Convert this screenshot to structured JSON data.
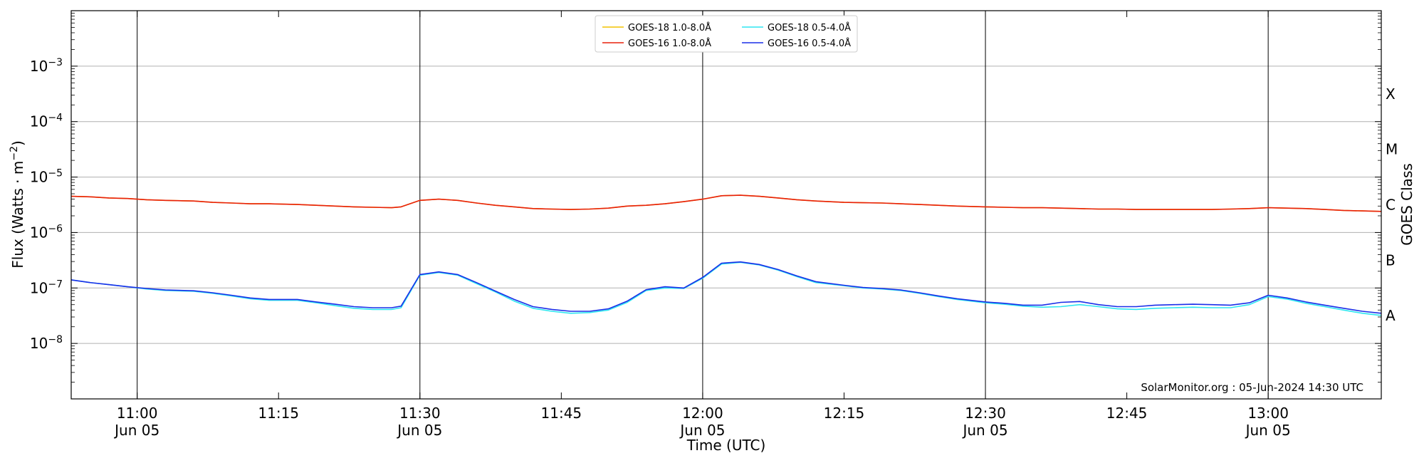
{
  "chart_data": {
    "type": "line",
    "xlabel": "Time (UTC)",
    "ylabel": "Flux (Watts · m",
    "ylabel_sup": "−2",
    "ylabel_close": ")",
    "y2label": "GOES Class",
    "yscale": "log",
    "xlim": [
      "10:53",
      "13:12"
    ],
    "ylim": [
      1e-09,
      0.01
    ],
    "grid": "horizontal",
    "legend_position": "top-center",
    "credit": "SolarMonitor.org : 05-Jun-2024 14:30 UTC",
    "x_ticks": [
      {
        "label": "11:00",
        "sublabel": "Jun 05",
        "value": "11:00",
        "major": true
      },
      {
        "label": "11:15",
        "sublabel": "",
        "value": "11:15",
        "major": false
      },
      {
        "label": "11:30",
        "sublabel": "Jun 05",
        "value": "11:30",
        "major": true
      },
      {
        "label": "11:45",
        "sublabel": "",
        "value": "11:45",
        "major": false
      },
      {
        "label": "12:00",
        "sublabel": "Jun 05",
        "value": "12:00",
        "major": true
      },
      {
        "label": "12:15",
        "sublabel": "",
        "value": "12:15",
        "major": false
      },
      {
        "label": "12:30",
        "sublabel": "Jun 05",
        "value": "12:30",
        "major": true
      },
      {
        "label": "12:45",
        "sublabel": "",
        "value": "12:45",
        "major": false
      },
      {
        "label": "13:00",
        "sublabel": "Jun 05",
        "value": "13:00",
        "major": true
      }
    ],
    "y_ticks": [
      {
        "exp": -8,
        "label": "10",
        "sup": "−8"
      },
      {
        "exp": -7,
        "label": "10",
        "sup": "−7"
      },
      {
        "exp": -6,
        "label": "10",
        "sup": "−6"
      },
      {
        "exp": -5,
        "label": "10",
        "sup": "−5"
      },
      {
        "exp": -4,
        "label": "10",
        "sup": "−4"
      },
      {
        "exp": -3,
        "label": "10",
        "sup": "−3"
      }
    ],
    "goes_classes": [
      {
        "label": "A",
        "exp": -7.5
      },
      {
        "label": "B",
        "exp": -6.5
      },
      {
        "label": "C",
        "exp": -5.5
      },
      {
        "label": "M",
        "exp": -4.5
      },
      {
        "label": "X",
        "exp": -3.5
      }
    ],
    "x": [
      "10:53",
      "10:55",
      "10:57",
      "10:59",
      "11:01",
      "11:03",
      "11:06",
      "11:08",
      "11:10",
      "11:12",
      "11:14",
      "11:17",
      "11:19",
      "11:21",
      "11:23",
      "11:25",
      "11:27",
      "11:28",
      "11:30",
      "11:32",
      "11:34",
      "11:36",
      "11:38",
      "11:40",
      "11:42",
      "11:44",
      "11:46",
      "11:48",
      "11:50",
      "11:52",
      "11:54",
      "11:56",
      "11:58",
      "12:00",
      "12:02",
      "12:04",
      "12:06",
      "12:08",
      "12:10",
      "12:12",
      "12:15",
      "12:17",
      "12:19",
      "12:21",
      "12:23",
      "12:25",
      "12:27",
      "12:30",
      "12:32",
      "12:34",
      "12:36",
      "12:38",
      "12:40",
      "12:42",
      "12:44",
      "12:46",
      "12:48",
      "12:50",
      "12:52",
      "12:54",
      "12:56",
      "12:58",
      "13:00",
      "13:02",
      "13:04",
      "13:06",
      "13:08",
      "13:10",
      "13:12"
    ],
    "series": [
      {
        "name": "GOES-18 1.0-8.0Å",
        "color": "#f2c200",
        "values": [
          4.5e-06,
          4.4e-06,
          4.2e-06,
          4.1e-06,
          3.9e-06,
          3.8e-06,
          3.7e-06,
          3.5e-06,
          3.4e-06,
          3.3e-06,
          3.3e-06,
          3.2e-06,
          3.1e-06,
          3e-06,
          2.9e-06,
          2.85e-06,
          2.8e-06,
          2.9e-06,
          3.8e-06,
          4e-06,
          3.8e-06,
          3.4e-06,
          3.1e-06,
          2.9e-06,
          2.7e-06,
          2.65e-06,
          2.6e-06,
          2.65e-06,
          2.75e-06,
          3e-06,
          3.1e-06,
          3.3e-06,
          3.6e-06,
          4e-06,
          4.6e-06,
          4.7e-06,
          4.5e-06,
          4.2e-06,
          3.9e-06,
          3.7e-06,
          3.5e-06,
          3.45e-06,
          3.4e-06,
          3.3e-06,
          3.2e-06,
          3.1e-06,
          3e-06,
          2.9e-06,
          2.85e-06,
          2.8e-06,
          2.8e-06,
          2.75e-06,
          2.7e-06,
          2.65e-06,
          2.65e-06,
          2.6e-06,
          2.6e-06,
          2.6e-06,
          2.6e-06,
          2.6e-06,
          2.65e-06,
          2.7e-06,
          2.8e-06,
          2.75e-06,
          2.7e-06,
          2.6e-06,
          2.5e-06,
          2.45e-06,
          2.4e-06
        ]
      },
      {
        "name": "GOES-16 1.0-8.0Å",
        "color": "#e8200c",
        "values": [
          4.5e-06,
          4.4e-06,
          4.2e-06,
          4.1e-06,
          3.9e-06,
          3.8e-06,
          3.7e-06,
          3.5e-06,
          3.4e-06,
          3.3e-06,
          3.3e-06,
          3.2e-06,
          3.1e-06,
          3e-06,
          2.9e-06,
          2.85e-06,
          2.8e-06,
          2.9e-06,
          3.8e-06,
          4e-06,
          3.8e-06,
          3.4e-06,
          3.1e-06,
          2.9e-06,
          2.7e-06,
          2.65e-06,
          2.6e-06,
          2.65e-06,
          2.75e-06,
          3e-06,
          3.1e-06,
          3.3e-06,
          3.6e-06,
          4e-06,
          4.6e-06,
          4.7e-06,
          4.5e-06,
          4.2e-06,
          3.9e-06,
          3.7e-06,
          3.5e-06,
          3.45e-06,
          3.4e-06,
          3.3e-06,
          3.2e-06,
          3.1e-06,
          3e-06,
          2.9e-06,
          2.85e-06,
          2.8e-06,
          2.8e-06,
          2.75e-06,
          2.7e-06,
          2.65e-06,
          2.65e-06,
          2.6e-06,
          2.6e-06,
          2.6e-06,
          2.6e-06,
          2.6e-06,
          2.65e-06,
          2.7e-06,
          2.8e-06,
          2.75e-06,
          2.7e-06,
          2.6e-06,
          2.5e-06,
          2.45e-06,
          2.4e-06
        ]
      },
      {
        "name": "GOES-18 0.5-4.0Å",
        "color": "#2ee6f0",
        "values": [
          1.4e-07,
          1.25e-07,
          1.15e-07,
          1.05e-07,
          9.6e-08,
          9e-08,
          8.7e-08,
          8e-08,
          7.2e-08,
          6.4e-08,
          6e-08,
          6e-08,
          5.4e-08,
          4.8e-08,
          4.3e-08,
          4.1e-08,
          4.1e-08,
          4.4e-08,
          1.7e-07,
          1.9e-07,
          1.7e-07,
          1.2e-07,
          8.5e-08,
          5.8e-08,
          4.3e-08,
          3.8e-08,
          3.5e-08,
          3.6e-08,
          4e-08,
          5.5e-08,
          9e-08,
          1e-07,
          9.8e-08,
          1.5e-07,
          2.7e-07,
          2.9e-07,
          2.6e-07,
          2.1e-07,
          1.6e-07,
          1.25e-07,
          1.1e-07,
          1e-07,
          9.6e-08,
          9e-08,
          8e-08,
          7e-08,
          6.2e-08,
          5.4e-08,
          5.1e-08,
          4.7e-08,
          4.5e-08,
          4.6e-08,
          5e-08,
          4.6e-08,
          4.2e-08,
          4.1e-08,
          4.3e-08,
          4.4e-08,
          4.5e-08,
          4.4e-08,
          4.4e-08,
          5e-08,
          7e-08,
          6.3e-08,
          5.3e-08,
          4.6e-08,
          4e-08,
          3.5e-08,
          3.2e-08
        ]
      },
      {
        "name": "GOES-16 0.5-4.0Å",
        "color": "#1a2ee8",
        "values": [
          1.4e-07,
          1.25e-07,
          1.15e-07,
          1.05e-07,
          9.8e-08,
          9.2e-08,
          8.9e-08,
          8.2e-08,
          7.4e-08,
          6.6e-08,
          6.2e-08,
          6.2e-08,
          5.6e-08,
          5.1e-08,
          4.6e-08,
          4.4e-08,
          4.4e-08,
          4.7e-08,
          1.75e-07,
          1.95e-07,
          1.75e-07,
          1.25e-07,
          8.8e-08,
          6.2e-08,
          4.6e-08,
          4.1e-08,
          3.8e-08,
          3.8e-08,
          4.2e-08,
          5.8e-08,
          9.3e-08,
          1.05e-07,
          1e-07,
          1.55e-07,
          2.8e-07,
          2.95e-07,
          2.65e-07,
          2.15e-07,
          1.65e-07,
          1.3e-07,
          1.12e-07,
          1.02e-07,
          9.8e-08,
          9.2e-08,
          8.2e-08,
          7.2e-08,
          6.4e-08,
          5.6e-08,
          5.3e-08,
          4.9e-08,
          4.9e-08,
          5.5e-08,
          5.7e-08,
          5e-08,
          4.6e-08,
          4.6e-08,
          4.9e-08,
          5e-08,
          5.1e-08,
          5e-08,
          4.9e-08,
          5.4e-08,
          7.4e-08,
          6.6e-08,
          5.6e-08,
          4.9e-08,
          4.3e-08,
          3.8e-08,
          3.5e-08
        ]
      }
    ]
  }
}
